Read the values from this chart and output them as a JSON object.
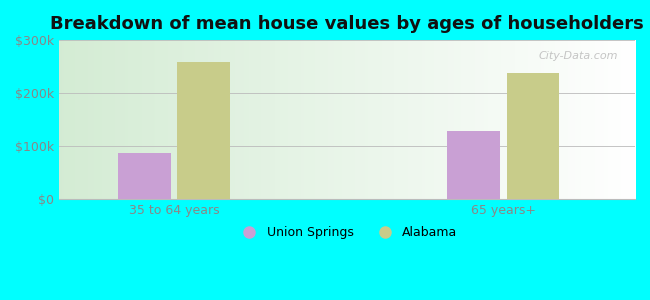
{
  "title": "Breakdown of mean house values by ages of householders",
  "categories": [
    "35 to 64 years",
    "65 years+"
  ],
  "union_springs_values": [
    88000,
    128000
  ],
  "alabama_values": [
    258000,
    238000
  ],
  "union_springs_color": "#c9a0d4",
  "alabama_color": "#c8cc8a",
  "ylim": [
    0,
    300000
  ],
  "yticks": [
    0,
    100000,
    200000,
    300000
  ],
  "ytick_labels": [
    "$0",
    "$100k",
    "$200k",
    "$300k"
  ],
  "background_color": "#00ffff",
  "legend_labels": [
    "Union Springs",
    "Alabama"
  ],
  "watermark": "City-Data.com",
  "bar_width": 0.32,
  "title_fontsize": 13
}
